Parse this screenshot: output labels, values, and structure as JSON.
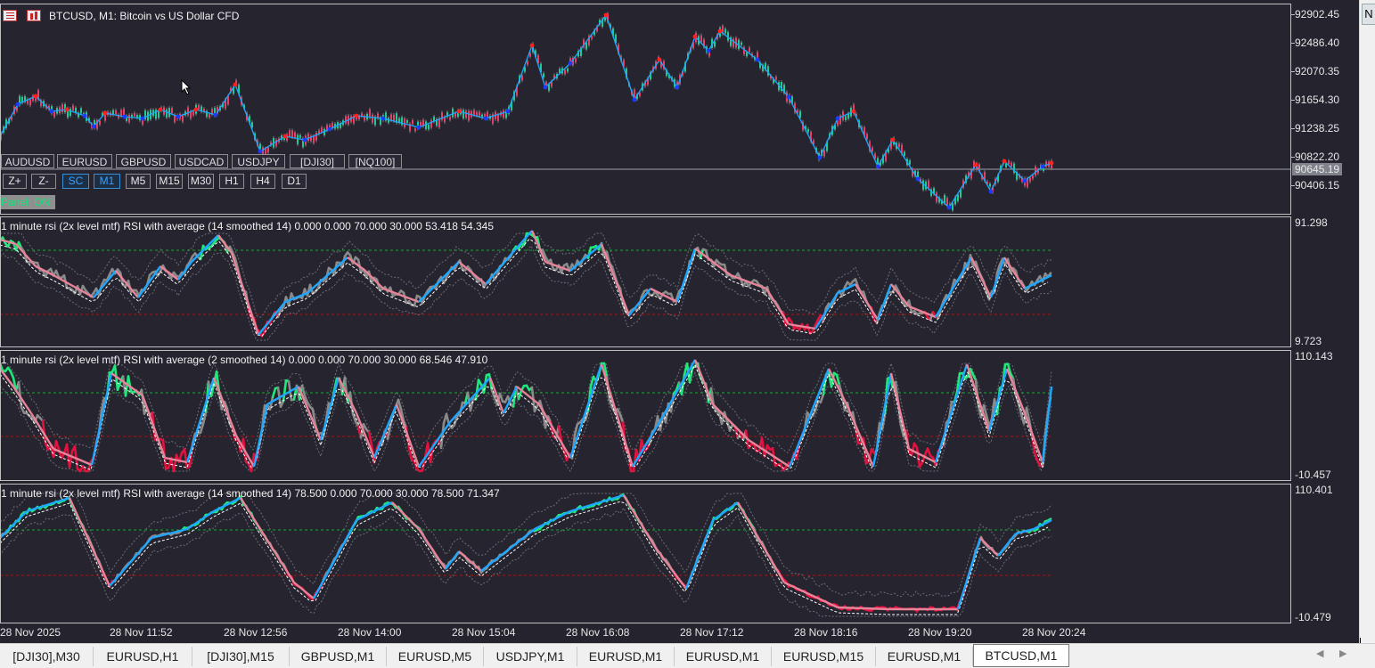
{
  "chart": {
    "symbol_title": "BTCUSD, M1:  Bitcoin vs US Dollar CFD",
    "price_labels": [
      "92902.45",
      "92486.40",
      "92070.35",
      "91654.30",
      "91238.25",
      "90822.20",
      "90406.15"
    ],
    "current_price": "90645.19",
    "symbol_buttons": [
      "AUDUSD",
      "EURUSD",
      "GBPUSD",
      "USDCAD",
      "USDJPY",
      "[DJI30]",
      "[NQ100]"
    ],
    "tf_buttons": [
      "Z+",
      "Z-",
      "SC",
      "M1",
      "M5",
      "M15",
      "M30",
      "H1",
      "H4",
      "D1"
    ],
    "active_tf_buttons": [
      "SC",
      "M1"
    ],
    "panel_status": "Panel: ON"
  },
  "indicators": [
    {
      "title": "1 minute rsi (2x level mtf) RSI with average (14 smoothed 14) 0.000 0.000 70.000 30.000 53.418 54.345",
      "max_label": "91.298",
      "min_label": "9.723"
    },
    {
      "title": "1 minute rsi (2x level mtf) RSI with average (2 smoothed 14) 0.000 0.000 70.000 30.000 68.546 47.910",
      "max_label": "110.143",
      "min_label": "-10.457"
    },
    {
      "title": "1 minute rsi (2x level mtf) RSI with average (14 smoothed 14) 78.500 0.000 70.000 30.000 78.500 71.347",
      "max_label": "110.401",
      "min_label": "-10.479"
    }
  ],
  "time_labels": [
    "28 Nov 2025",
    "28 Nov 11:52",
    "28 Nov 12:56",
    "28 Nov 14:00",
    "28 Nov 15:04",
    "28 Nov 16:08",
    "28 Nov 17:12",
    "28 Nov 18:16",
    "28 Nov 19:20",
    "28 Nov 20:24"
  ],
  "tabs": [
    "[DJI30],M30",
    "EURUSD,H1",
    "[DJI30],M15",
    "GBPUSD,M1",
    "EURUSD,M5",
    "USDJPY,M1",
    "EURUSD,M1",
    "EURUSD,M1",
    "EURUSD,M15",
    "EURUSD,M1",
    "BTCUSD,M1"
  ],
  "active_tab": "BTCUSD,M1",
  "right_panel_letter": "N",
  "colors": {
    "background": "#25232e",
    "up_swing": "#1ea7ff",
    "down_swing": "#e7849a",
    "rsi_up": "#1fe87a",
    "rsi_down": "#e3123f",
    "rsi_neutral": "#8a8a8a",
    "level_70": "#1f9f3a",
    "level_30": "#a01818",
    "swing_high_dot": "#ff2020",
    "swing_low_dot": "#1a3cff"
  }
}
